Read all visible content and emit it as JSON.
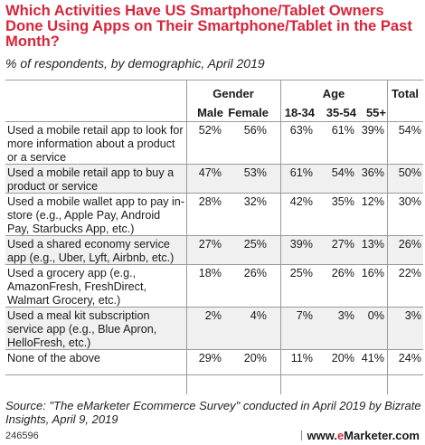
{
  "title": "Which Activities Have US Smartphone/Tablet Owners Done Using Apps on Their Smartphone/Tablet in the Past Month?",
  "subtitle": "% of respondents, by demographic, April 2019",
  "chart_data": {
    "type": "table",
    "group_headers": [
      "Gender",
      "Age",
      "Total"
    ],
    "columns": [
      "Male",
      "Female",
      "18-34",
      "35-54",
      "55+",
      "Total"
    ],
    "rows": [
      {
        "label": "Used a mobile retail app to look for more information about a product or a service",
        "values": [
          "52%",
          "56%",
          "63%",
          "61%",
          "39%",
          "54%"
        ]
      },
      {
        "label": "Used a mobile retail app to buy a product or service",
        "values": [
          "47%",
          "53%",
          "61%",
          "54%",
          "36%",
          "50%"
        ]
      },
      {
        "label": "Used a mobile wallet app to pay in-store (e.g., Apple Pay, Android Pay, Starbucks App, etc.)",
        "values": [
          "28%",
          "32%",
          "42%",
          "35%",
          "12%",
          "30%"
        ]
      },
      {
        "label": "Used a shared economy service app (e.g., Uber, Lyft, Airbnb, etc.)",
        "values": [
          "27%",
          "25%",
          "39%",
          "27%",
          "13%",
          "26%"
        ]
      },
      {
        "label": "Used a grocery app (e.g., AmazonFresh, FreshDirect, Walmart Grocery, etc.)",
        "values": [
          "18%",
          "26%",
          "25%",
          "26%",
          "16%",
          "22%"
        ]
      },
      {
        "label": "Used a meal kit subscription service app (e.g., Blue Apron, HelloFresh, etc.)",
        "values": [
          "2%",
          "4%",
          "7%",
          "3%",
          "0%",
          "3%"
        ]
      },
      {
        "label": "None of the above",
        "values": [
          "29%",
          "20%",
          "11%",
          "20%",
          "41%",
          "24%"
        ]
      }
    ]
  },
  "source": "Source: \"The eMarketer Ecommerce Survey\" conducted in April 2019 by Bizrate Insights, April 9, 2019",
  "footer": {
    "code": "246596",
    "brand_prefix": "www.",
    "brand_accent": "e",
    "brand_suffix": "Marketer.com"
  },
  "colors": {
    "title": "#d8253a",
    "row_alt": "#f0f0f0",
    "rule": "#9a9a9a"
  }
}
